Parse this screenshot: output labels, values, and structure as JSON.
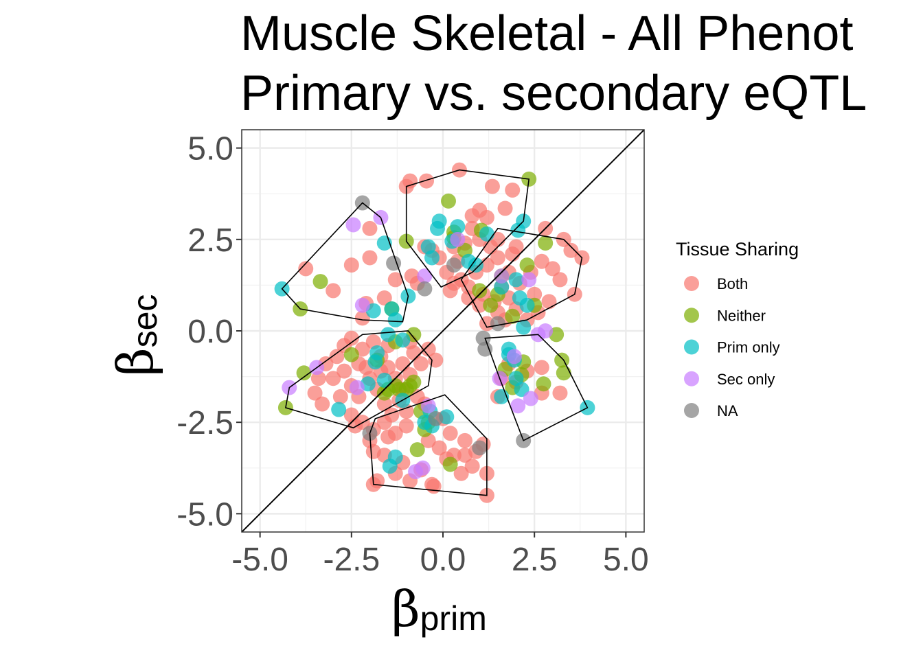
{
  "chart_data": {
    "type": "scatter",
    "title_lines": [
      "Muscle Skeletal - All Phenot",
      "Primary vs. secondary eQTL"
    ],
    "xlabel": {
      "symbol": "β",
      "sub": "prim"
    },
    "ylabel": {
      "symbol": "β",
      "sub": "sec"
    },
    "xlim": [
      -5.5,
      5.5
    ],
    "ylim": [
      -5.5,
      5.5
    ],
    "xticks": [
      -5.0,
      -2.5,
      0.0,
      2.5,
      5.0
    ],
    "yticks": [
      -5.0,
      -2.5,
      0.0,
      2.5,
      5.0
    ],
    "xtick_labels": [
      "-5.0",
      "-2.5",
      "0.0",
      "2.5",
      "5.0"
    ],
    "ytick_labels": [
      "-5.0",
      "-2.5",
      "0.0",
      "2.5",
      "5.0"
    ],
    "grid": true,
    "reference_line": "y = x",
    "legend": {
      "title": "Tissue Sharing",
      "placement": "right",
      "entries": [
        {
          "label": "Both",
          "color": "#F8766D"
        },
        {
          "label": "Neither",
          "color": "#7CAE00"
        },
        {
          "label": "Prim only",
          "color": "#00BFC4"
        },
        {
          "label": "Sec only",
          "color": "#C77CFF"
        },
        {
          "label": "NA",
          "color": "#7F7F7F"
        }
      ]
    },
    "series": [
      {
        "name": "Both",
        "color": "#F8766D",
        "points": [
          [
            0.45,
            4.4
          ],
          [
            -0.9,
            4.1
          ],
          [
            -1.0,
            3.95
          ],
          [
            1.35,
            3.95
          ],
          [
            1.9,
            3.85
          ],
          [
            -0.45,
            4.1
          ],
          [
            1.0,
            3.3
          ],
          [
            1.7,
            3.35
          ],
          [
            1.2,
            3.1
          ],
          [
            0.8,
            3.15
          ],
          [
            -2.0,
            2.8
          ],
          [
            -2.0,
            2.0
          ],
          [
            -2.5,
            1.8
          ],
          [
            -3.75,
            1.7
          ],
          [
            -3.0,
            1.1
          ],
          [
            -1.3,
            1.4
          ],
          [
            -0.7,
            1.3
          ],
          [
            -0.85,
            1.5
          ],
          [
            -1.6,
            0.9
          ],
          [
            -2.1,
            0.75
          ],
          [
            -2.2,
            0.35
          ],
          [
            -0.5,
            2.3
          ],
          [
            -0.3,
            2.2
          ],
          [
            0.3,
            2.3
          ],
          [
            0.6,
            2.4
          ],
          [
            1.0,
            2.5
          ],
          [
            1.5,
            2.0
          ],
          [
            1.2,
            1.8
          ],
          [
            0.9,
            1.6
          ],
          [
            0.4,
            1.9
          ],
          [
            -0.1,
            2.0
          ],
          [
            0.1,
            1.6
          ],
          [
            0.3,
            1.3
          ],
          [
            0.7,
            1.2
          ],
          [
            1.1,
            1.0
          ],
          [
            1.4,
            0.8
          ],
          [
            1.6,
            1.2
          ],
          [
            1.8,
            0.9
          ],
          [
            2.1,
            1.3
          ],
          [
            2.4,
            1.6
          ],
          [
            2.7,
            1.9
          ],
          [
            3.0,
            1.7
          ],
          [
            3.3,
            2.5
          ],
          [
            3.5,
            2.2
          ],
          [
            3.8,
            2.0
          ],
          [
            3.6,
            1.0
          ],
          [
            2.9,
            0.8
          ],
          [
            2.6,
            0.5
          ],
          [
            2.3,
            0.3
          ],
          [
            2.0,
            0.6
          ],
          [
            1.5,
            0.5
          ],
          [
            1.2,
            0.2
          ],
          [
            1.0,
            0.7
          ],
          [
            0.7,
            0.9
          ],
          [
            0.5,
            1.4
          ],
          [
            0.2,
            1.1
          ],
          [
            1.3,
            2.3
          ],
          [
            1.5,
            2.5
          ],
          [
            2.0,
            2.3
          ],
          [
            2.8,
            2.8
          ],
          [
            1.8,
            1.6
          ],
          [
            1.7,
            0.3
          ],
          [
            3.2,
            1.4
          ],
          [
            2.5,
            1.0
          ],
          [
            1.9,
            2.1
          ],
          [
            0.8,
            2.8
          ],
          [
            -2.5,
            -0.2
          ],
          [
            -2.2,
            -0.5
          ],
          [
            -1.9,
            -0.3
          ],
          [
            -1.7,
            -0.7
          ],
          [
            -1.5,
            -1.0
          ],
          [
            -1.3,
            -1.3
          ],
          [
            -1.1,
            -0.9
          ],
          [
            -0.9,
            -1.2
          ],
          [
            -0.8,
            -0.6
          ],
          [
            -0.6,
            -0.9
          ],
          [
            -0.4,
            -0.5
          ],
          [
            -0.2,
            -0.8
          ],
          [
            -2.9,
            -0.7
          ],
          [
            -3.2,
            -0.9
          ],
          [
            -3.0,
            -1.3
          ],
          [
            -2.7,
            -1.1
          ],
          [
            -2.5,
            -1.5
          ],
          [
            -2.3,
            -1.8
          ],
          [
            -2.0,
            -1.3
          ],
          [
            -1.8,
            -1.6
          ],
          [
            -1.6,
            -2.0
          ],
          [
            -1.4,
            -2.3
          ],
          [
            -1.2,
            -1.9
          ],
          [
            -1.0,
            -2.2
          ],
          [
            -0.7,
            -1.8
          ],
          [
            -0.5,
            -2.0
          ],
          [
            -3.5,
            -1.7
          ],
          [
            -3.3,
            -2.0
          ],
          [
            -2.8,
            -1.8
          ],
          [
            -2.5,
            -2.3
          ],
          [
            -2.2,
            -2.5
          ],
          [
            -1.9,
            -2.7
          ],
          [
            -1.6,
            -2.5
          ],
          [
            -1.3,
            -2.8
          ],
          [
            -1.0,
            -2.6
          ],
          [
            -2.4,
            -2.6
          ],
          [
            -2.1,
            -1.0
          ],
          [
            -1.5,
            -0.4
          ],
          [
            -0.9,
            -0.3
          ],
          [
            -2.7,
            -0.4
          ],
          [
            -3.4,
            -1.3
          ],
          [
            -1.1,
            -1.6
          ],
          [
            -1.7,
            -1.1
          ],
          [
            -2.3,
            -0.9
          ],
          [
            0.0,
            -2.4
          ],
          [
            0.2,
            -2.8
          ],
          [
            -0.1,
            -3.2
          ],
          [
            0.3,
            -3.4
          ],
          [
            0.6,
            -3.0
          ],
          [
            0.9,
            -3.3
          ],
          [
            1.1,
            -3.1
          ],
          [
            0.8,
            -3.7
          ],
          [
            0.5,
            -3.9
          ],
          [
            1.2,
            -3.9
          ],
          [
            1.2,
            -4.5
          ],
          [
            -0.3,
            -4.2
          ],
          [
            -0.6,
            -3.8
          ],
          [
            -0.9,
            -4.1
          ],
          [
            -1.3,
            -3.9
          ],
          [
            -1.6,
            -3.4
          ],
          [
            -1.9,
            -3.3
          ],
          [
            -1.8,
            -4.1
          ],
          [
            -2.0,
            -3.0
          ],
          [
            -1.5,
            -2.9
          ],
          [
            -1.1,
            -3.6
          ],
          [
            -0.4,
            -3.0
          ],
          [
            0.1,
            -3.5
          ],
          [
            0.6,
            -3.4
          ],
          [
            -1.9,
            -4.2
          ],
          [
            -0.25,
            -4.25
          ],
          [
            1.6,
            -1.3
          ],
          [
            1.8,
            -0.9
          ],
          [
            2.0,
            -1.4
          ],
          [
            1.5,
            -1.8
          ],
          [
            2.3,
            -1.1
          ],
          [
            2.7,
            -1.0
          ],
          [
            2.7,
            -1.7
          ],
          [
            3.2,
            -1.7
          ]
        ]
      },
      {
        "name": "Neither",
        "color": "#7CAE00",
        "points": [
          [
            0.15,
            3.55
          ],
          [
            2.35,
            4.15
          ],
          [
            -3.35,
            1.35
          ],
          [
            -3.9,
            0.6
          ],
          [
            -1.0,
            2.45
          ],
          [
            0.3,
            2.7
          ],
          [
            1.05,
            2.75
          ],
          [
            2.8,
            2.4
          ],
          [
            2.3,
            1.8
          ],
          [
            1.6,
            1.5
          ],
          [
            1.0,
            1.1
          ],
          [
            2.5,
            0.7
          ],
          [
            0.6,
            2.2
          ],
          [
            1.3,
            0.7
          ],
          [
            0.3,
            2.55
          ],
          [
            1.5,
            1.0
          ],
          [
            1.9,
            0.4
          ],
          [
            -4.3,
            -2.1
          ],
          [
            -3.8,
            -1.15
          ],
          [
            -2.5,
            -0.65
          ],
          [
            -1.3,
            -0.3
          ],
          [
            -0.8,
            -0.1
          ],
          [
            -1.5,
            -1.6
          ],
          [
            -1.2,
            -1.6
          ],
          [
            -0.9,
            -1.5
          ],
          [
            -1.6,
            -1.7
          ],
          [
            -1.0,
            -1.6
          ],
          [
            -1.3,
            -1.5
          ],
          [
            -0.8,
            -1.4
          ],
          [
            -1.8,
            -0.8
          ],
          [
            -0.6,
            -2.2
          ],
          [
            -0.4,
            -2.5
          ],
          [
            -0.5,
            -2.7
          ],
          [
            -0.7,
            -3.25
          ],
          [
            0.2,
            -3.65
          ],
          [
            -1.4,
            0.6
          ],
          [
            2.15,
            -1.2
          ],
          [
            2.2,
            -0.85
          ],
          [
            2.75,
            -1.45
          ],
          [
            3.25,
            -0.8
          ],
          [
            3.3,
            -1.15
          ],
          [
            3.1,
            -0.1
          ],
          [
            1.7,
            -1.05
          ],
          [
            1.9,
            -1.55
          ]
        ]
      },
      {
        "name": "Prim only",
        "color": "#00BFC4",
        "points": [
          [
            -4.4,
            1.15
          ],
          [
            -0.15,
            2.8
          ],
          [
            -0.1,
            3.0
          ],
          [
            0.4,
            2.85
          ],
          [
            2.2,
            3.0
          ],
          [
            2.05,
            2.75
          ],
          [
            1.2,
            2.65
          ],
          [
            0.25,
            2.45
          ],
          [
            -0.4,
            2.3
          ],
          [
            -1.6,
            2.4
          ],
          [
            -0.95,
            0.95
          ],
          [
            -1.4,
            0.6
          ],
          [
            -1.3,
            0.3
          ],
          [
            -1.9,
            0.55
          ],
          [
            2.0,
            1.4
          ],
          [
            2.3,
            0.7
          ],
          [
            2.2,
            0.1
          ],
          [
            0.9,
            1.8
          ],
          [
            1.6,
            1.2
          ],
          [
            2.1,
            0.9
          ],
          [
            0.7,
            1.9
          ],
          [
            -0.3,
            2.0
          ],
          [
            -2.85,
            -2.15
          ],
          [
            -2.05,
            -1.45
          ],
          [
            -1.8,
            -0.6
          ],
          [
            -1.85,
            -0.85
          ],
          [
            -1.6,
            -1.35
          ],
          [
            -1.1,
            -0.25
          ],
          [
            -1.5,
            -0.1
          ],
          [
            -0.35,
            -2.2
          ],
          [
            -0.3,
            -2.6
          ],
          [
            -0.5,
            -2.5
          ],
          [
            0.1,
            -2.35
          ],
          [
            -1.3,
            -3.45
          ],
          [
            -1.45,
            -3.7
          ],
          [
            -1.1,
            -1.9
          ],
          [
            1.8,
            -0.65
          ],
          [
            1.95,
            -0.8
          ],
          [
            2.0,
            -1.3
          ],
          [
            1.6,
            -1.8
          ],
          [
            2.15,
            -1.6
          ],
          [
            3.95,
            -2.1
          ],
          [
            1.8,
            -0.5
          ]
        ]
      },
      {
        "name": "Sec only",
        "color": "#C77CFF",
        "points": [
          [
            -2.45,
            2.9
          ],
          [
            -1.7,
            3.1
          ],
          [
            -2.2,
            0.7
          ],
          [
            -0.5,
            1.5
          ],
          [
            0.4,
            2.5
          ],
          [
            1.6,
            1.5
          ],
          [
            2.35,
            1.4
          ],
          [
            2.6,
            -0.1
          ],
          [
            2.8,
            0.0
          ],
          [
            -4.2,
            -1.55
          ],
          [
            -3.45,
            -1.0
          ],
          [
            -2.35,
            -1.55
          ],
          [
            -0.75,
            -3.85
          ],
          [
            -0.55,
            -3.75
          ],
          [
            -0.4,
            -2.05
          ],
          [
            2.05,
            -2.05
          ],
          [
            2.4,
            -1.85
          ],
          [
            1.55,
            -1.3
          ],
          [
            1.95,
            -0.7
          ]
        ]
      },
      {
        "name": "NA",
        "color": "#7F7F7F",
        "points": [
          [
            -2.2,
            3.5
          ],
          [
            -1.35,
            1.85
          ],
          [
            -0.5,
            1.15
          ],
          [
            2.2,
            -3.0
          ],
          [
            1.15,
            -0.5
          ],
          [
            1.1,
            -0.2
          ],
          [
            0.3,
            1.8
          ],
          [
            1.5,
            0.2
          ],
          [
            -2.0,
            -2.8
          ],
          [
            -0.2,
            -2.4
          ],
          [
            1.0,
            -3.2
          ]
        ]
      }
    ],
    "hulls": [
      [
        [
          0.45,
          4.4
        ],
        [
          2.35,
          4.15
        ],
        [
          2.2,
          3.0
        ],
        [
          0.8,
          1.6
        ],
        [
          -0.05,
          1.2
        ],
        [
          -1.0,
          2.45
        ],
        [
          -1.0,
          3.95
        ]
      ],
      [
        [
          -2.2,
          3.5
        ],
        [
          -1.7,
          3.1
        ],
        [
          -0.95,
          0.95
        ],
        [
          -1.1,
          0.25
        ],
        [
          -2.2,
          0.3
        ],
        [
          -3.9,
          0.6
        ],
        [
          -4.4,
          1.15
        ]
      ],
      [
        [
          1.5,
          2.8
        ],
        [
          3.3,
          2.5
        ],
        [
          3.8,
          2.0
        ],
        [
          3.6,
          1.0
        ],
        [
          2.3,
          0.3
        ],
        [
          1.2,
          0.1
        ],
        [
          0.5,
          1.4
        ]
      ],
      [
        [
          -2.2,
          -0.1
        ],
        [
          -0.95,
          0.0
        ],
        [
          -0.3,
          -0.8
        ],
        [
          -0.4,
          -1.5
        ],
        [
          -2.45,
          -2.65
        ],
        [
          -4.3,
          -2.1
        ],
        [
          -4.2,
          -1.55
        ]
      ],
      [
        [
          -1.85,
          -2.4
        ],
        [
          0.05,
          -1.75
        ],
        [
          1.2,
          -2.95
        ],
        [
          1.2,
          -4.5
        ],
        [
          -1.9,
          -4.2
        ],
        [
          -2.0,
          -2.8
        ]
      ],
      [
        [
          1.15,
          -0.2
        ],
        [
          2.6,
          -0.1
        ],
        [
          3.3,
          -0.8
        ],
        [
          3.95,
          -2.1
        ],
        [
          2.2,
          -3.0
        ],
        [
          1.55,
          -1.3
        ]
      ]
    ]
  }
}
